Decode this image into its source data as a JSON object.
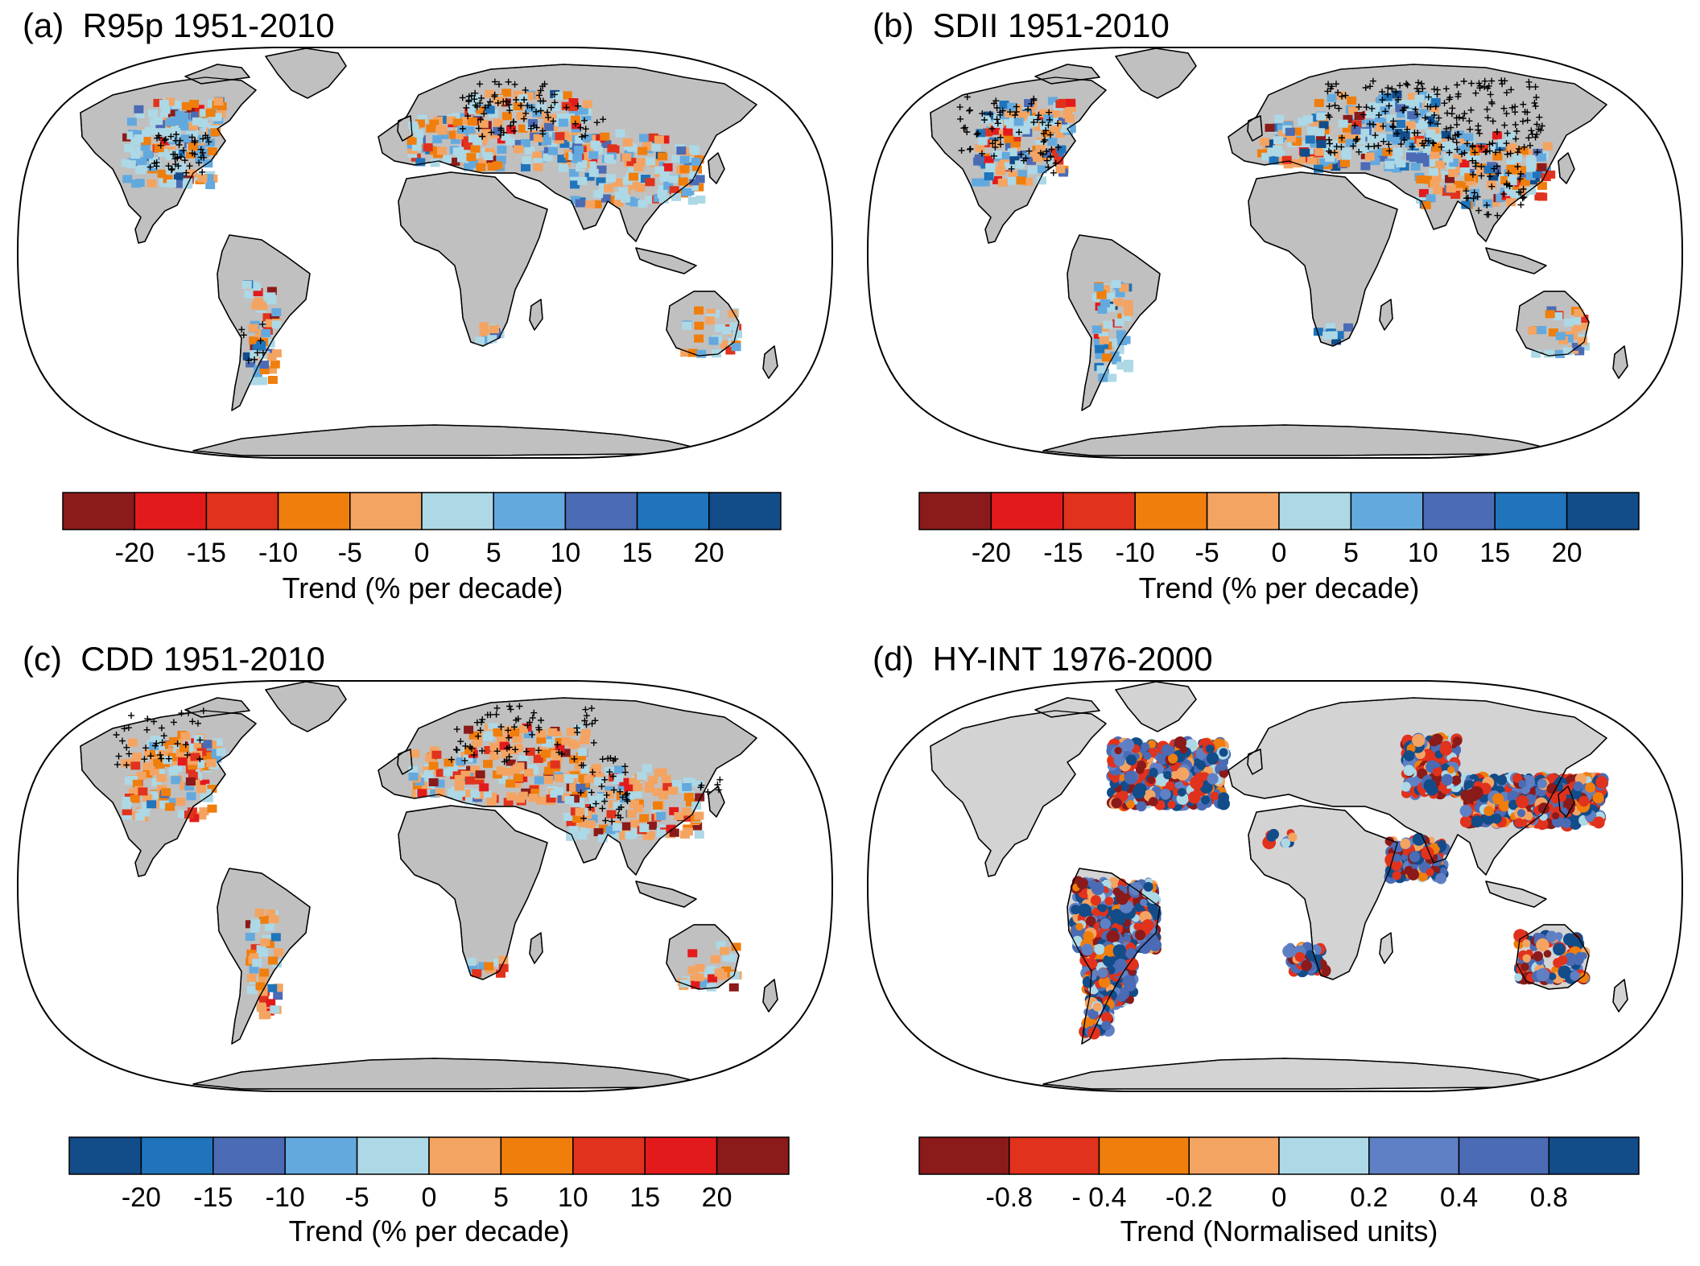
{
  "colors": {
    "land": "#c0c0c0",
    "land_d": "#d3d3d3",
    "ocean": "#ffffff",
    "outline": "#000000",
    "ramp_dry_to_wet": [
      "#8b1a1a",
      "#e31a1c",
      "#e0321c",
      "#ef7e0d",
      "#f4a462",
      "#add8e6",
      "#63a9de",
      "#4b6bb5",
      "#1f74bb",
      "#124c89"
    ],
    "ramp_d": [
      "#8b1a1a",
      "#e0321c",
      "#ef7e0d",
      "#f4a462",
      "#add8e6",
      "#5f80c4",
      "#4b6bb5",
      "#124c89"
    ]
  },
  "panels": [
    {
      "id": "a",
      "title": "(a)  R95p 1951-2010",
      "colorbar": {
        "ticks": [
          "-20",
          "-15",
          "-10",
          "-5",
          "0",
          "5",
          "10",
          "15",
          "20"
        ],
        "label": "Trend (% per decade)",
        "reversed": false
      }
    },
    {
      "id": "b",
      "title": "(b)  SDII 1951-2010",
      "colorbar": {
        "ticks": [
          "-20",
          "-15",
          "-10",
          "-5",
          "0",
          "5",
          "10",
          "15",
          "20"
        ],
        "label": "Trend (% per decade)",
        "reversed": false
      }
    },
    {
      "id": "c",
      "title": "(c)  CDD 1951-2010",
      "colorbar": {
        "ticks": [
          "-20",
          "-15",
          "-10",
          "-5",
          "0",
          "5",
          "10",
          "15",
          "20"
        ],
        "label": "Trend (% per decade)",
        "reversed": true
      }
    },
    {
      "id": "d",
      "title": "(d)  HY-INT 1976-2000",
      "colorbar": {
        "ticks": [
          "-0.8",
          "- 0.4",
          "-0.2",
          "0",
          "0.2",
          "0.4",
          "0.8"
        ],
        "label": "Trend (Normalised units)",
        "reversed": false
      }
    }
  ]
}
